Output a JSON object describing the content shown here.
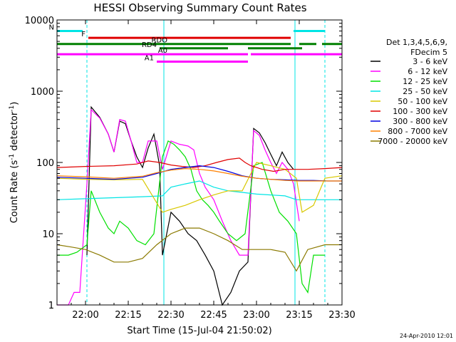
{
  "chart_data": {
    "type": "line",
    "title": "HESSI Observing Summary Count Rates",
    "xlabel": "Start Time (15-Jul-04 21:50:02)",
    "ylabel_main": "Count Rate (s",
    "ylabel_exp1": "-1",
    "ylabel_mid": " detector",
    "ylabel_exp2": "-1",
    "ylabel_end": ")",
    "footer": "24-Apr-2010 12:01",
    "xlim_min": [
      0,
      100
    ],
    "ylim": [
      1,
      10000
    ],
    "yscale": "log",
    "x_ticks": [
      {
        "min": 10,
        "label": "22:00"
      },
      {
        "min": 25,
        "label": "22:15"
      },
      {
        "min": 40,
        "label": "22:30"
      },
      {
        "min": 55,
        "label": "22:45"
      },
      {
        "min": 70,
        "label": "23:00"
      },
      {
        "min": 85,
        "label": "23:15"
      },
      {
        "min": 100,
        "label": "23:30"
      }
    ],
    "y_ticks": [
      {
        "value": 1,
        "label": "1"
      },
      {
        "value": 10,
        "label": "10"
      },
      {
        "value": 100,
        "label": "100"
      },
      {
        "value": 1000,
        "label": "1000"
      },
      {
        "value": 10000,
        "label": "10000"
      }
    ],
    "legend": {
      "header1": "Det 1,3,4,5,6,9,",
      "header2": "FDecim 5",
      "entries": [
        {
          "label": "3 - 6 keV",
          "color": "#000000"
        },
        {
          "label": "6 - 12 keV",
          "color": "#ff00ff"
        },
        {
          "label": "12 - 25 keV",
          "color": "#00e000"
        },
        {
          "label": "25 - 50 keV",
          "color": "#00e5e5"
        },
        {
          "label": "50 - 100 keV",
          "color": "#d8c800"
        },
        {
          "label": "100 - 300 keV",
          "color": "#e00000"
        },
        {
          "label": "300 - 800 keV",
          "color": "#0000e0"
        },
        {
          "label": "800 - 7000 keV",
          "color": "#ff8000"
        },
        {
          "label": "7000 - 20000 keV",
          "color": "#8b7a00"
        }
      ]
    },
    "flags": [
      {
        "label": "N",
        "color": "#00e5e5",
        "y": 7000,
        "segments": [
          [
            0,
            9
          ],
          [
            83,
            94
          ]
        ]
      },
      {
        "label": "F",
        "color": "#e00000",
        "y": 5600,
        "segments": [
          [
            11,
            82
          ]
        ]
      },
      {
        "label": "RDO",
        "color": "#008000",
        "y": 4600,
        "segments": [
          [
            0,
            82
          ],
          [
            85,
            91
          ],
          [
            93,
            100
          ]
        ]
      },
      {
        "label": "RD4",
        "color": "#008000",
        "y": 4000,
        "segments": [
          [
            36,
            60
          ],
          [
            67,
            86
          ]
        ]
      },
      {
        "label": "A0",
        "color": "#ff00ff",
        "y": 3300,
        "segments": [
          [
            0,
            67
          ],
          [
            68,
            100
          ]
        ]
      },
      {
        "label": "A1",
        "color": "#ff00ff",
        "y": 2600,
        "segments": [
          [
            35,
            67
          ]
        ]
      }
    ],
    "vlines": [
      {
        "min": 10.5,
        "color": "#00e5e5",
        "style": "dashed"
      },
      {
        "min": 37.5,
        "color": "#00e5e5",
        "style": "solid"
      },
      {
        "min": 83.5,
        "color": "#00e5e5",
        "style": "solid"
      },
      {
        "min": 94,
        "color": "#00e5e5",
        "style": "dashed"
      }
    ],
    "series": [
      {
        "name": "3 - 6 keV",
        "color": "#000000",
        "x": [
          10.5,
          12,
          15,
          18,
          20,
          22,
          24,
          26,
          28,
          30,
          32,
          34,
          36,
          37,
          40,
          43,
          46,
          49,
          52,
          55,
          58,
          61,
          64,
          67,
          69,
          71,
          73,
          75,
          77,
          79,
          81,
          83
        ],
        "y": [
          5,
          600,
          430,
          250,
          140,
          380,
          350,
          200,
          120,
          85,
          160,
          250,
          90,
          5,
          20,
          15,
          10,
          8,
          5,
          3,
          1,
          1.5,
          3,
          4,
          300,
          260,
          190,
          130,
          90,
          140,
          100,
          80
        ]
      },
      {
        "name": "6 - 12 keV",
        "color": "#ff00ff",
        "x": [
          0,
          4,
          6,
          8,
          10.5,
          12,
          15,
          18,
          20,
          22,
          24,
          26,
          28,
          30,
          32,
          35,
          37,
          40,
          43,
          46,
          48,
          50,
          52,
          55,
          58,
          61,
          64,
          67,
          69,
          71,
          73,
          75,
          77,
          79,
          81,
          83,
          85
        ],
        "y": [
          1,
          1,
          1.5,
          1.5,
          50,
          550,
          420,
          250,
          140,
          400,
          380,
          200,
          100,
          100,
          200,
          200,
          80,
          200,
          180,
          170,
          150,
          70,
          45,
          30,
          15,
          8,
          5,
          5,
          280,
          240,
          150,
          100,
          70,
          100,
          80,
          50,
          15
        ]
      },
      {
        "name": "12 - 25 keV",
        "color": "#00e000",
        "x": [
          0,
          4,
          7,
          10.5,
          12,
          15,
          18,
          20,
          22,
          25,
          28,
          31,
          34,
          37,
          39,
          41,
          43,
          45,
          47,
          49,
          51,
          53,
          55,
          57,
          60,
          63,
          66,
          69,
          72,
          75,
          78,
          81,
          84,
          86,
          88,
          90,
          94
        ],
        "y": [
          5,
          5,
          5.5,
          7,
          40,
          20,
          12,
          10,
          15,
          12,
          8,
          7,
          10,
          120,
          200,
          180,
          150,
          120,
          80,
          40,
          30,
          25,
          20,
          15,
          10,
          8,
          10,
          90,
          100,
          40,
          20,
          15,
          10,
          2,
          1.5,
          5,
          5
        ]
      },
      {
        "name": "25 - 50 keV",
        "color": "#00e5e5",
        "x": [
          0,
          10,
          20,
          30,
          37,
          40,
          45,
          50,
          55,
          60,
          65,
          70,
          75,
          80,
          84,
          88,
          94,
          100
        ],
        "y": [
          30,
          31,
          32,
          33,
          34,
          45,
          50,
          55,
          45,
          40,
          38,
          36,
          35,
          34,
          30,
          30,
          30,
          30
        ]
      },
      {
        "name": "50 - 100 keV",
        "color": "#d8c800",
        "x": [
          0,
          10,
          20,
          30,
          37,
          40,
          45,
          50,
          55,
          60,
          65,
          70,
          75,
          80,
          84,
          86,
          90,
          94,
          100
        ],
        "y": [
          60,
          58,
          57,
          58,
          20,
          22,
          25,
          30,
          35,
          40,
          40,
          100,
          90,
          80,
          60,
          20,
          25,
          60,
          65
        ]
      },
      {
        "name": "100 - 300 keV",
        "color": "#e00000",
        "x": [
          0,
          10,
          20,
          28,
          32,
          36,
          40,
          44,
          48,
          52,
          56,
          60,
          64,
          66,
          68,
          70,
          72,
          76,
          80,
          84,
          88,
          94,
          100
        ],
        "y": [
          85,
          88,
          90,
          95,
          105,
          100,
          92,
          88,
          85,
          90,
          100,
          110,
          115,
          100,
          90,
          85,
          80,
          75,
          80,
          80,
          80,
          82,
          85
        ]
      },
      {
        "name": "300 - 800 keV",
        "color": "#0000e0",
        "x": [
          0,
          10,
          20,
          30,
          35,
          40,
          45,
          50,
          55,
          60,
          65,
          70,
          75,
          80,
          85,
          90,
          95,
          100
        ],
        "y": [
          62,
          60,
          58,
          62,
          70,
          80,
          85,
          90,
          85,
          75,
          65,
          60,
          58,
          57,
          56,
          56,
          55,
          55
        ]
      },
      {
        "name": "800 - 7000 keV",
        "color": "#ff8000",
        "x": [
          0,
          10,
          20,
          30,
          35,
          40,
          45,
          50,
          55,
          60,
          65,
          70,
          75,
          80,
          85,
          90,
          95,
          100
        ],
        "y": [
          65,
          63,
          60,
          64,
          72,
          78,
          82,
          80,
          76,
          70,
          64,
          60,
          58,
          56,
          55,
          55,
          55,
          55
        ]
      },
      {
        "name": "7000 - 20000 keV",
        "color": "#8b7a00",
        "x": [
          0,
          5,
          10,
          15,
          20,
          25,
          30,
          35,
          40,
          45,
          50,
          55,
          60,
          65,
          70,
          75,
          80,
          84,
          88,
          94,
          100
        ],
        "y": [
          7,
          6.5,
          6,
          5,
          4,
          4,
          4.5,
          7,
          10,
          12,
          12,
          10,
          8,
          6,
          6,
          6,
          5.5,
          3,
          6,
          7,
          7
        ]
      }
    ]
  }
}
